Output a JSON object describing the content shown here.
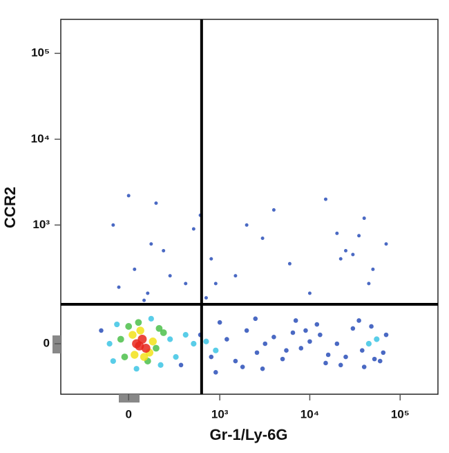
{
  "chart_data": {
    "type": "scatter",
    "x_label": "Gr-1/Ly-6G",
    "y_label": "CCR2",
    "scale": "biexponential",
    "xlim": [
      -540,
      262000
    ],
    "ylim": [
      -150,
      249000
    ],
    "xticks": [
      0,
      {
        "value": 1000,
        "label": "10³"
      },
      {
        "value": 10000,
        "label": "10⁴"
      },
      {
        "value": 100000,
        "label": "10⁵"
      }
    ],
    "yticks": [
      0,
      {
        "value": 1000,
        "label": "10³"
      },
      {
        "value": 10000,
        "label": "10⁴"
      },
      {
        "value": 100000,
        "label": "10⁵"
      }
    ],
    "gates": {
      "x": 620,
      "y": 105
    },
    "series": [
      {
        "color": "#2a4fb8",
        "x": [
          -80,
          0,
          30,
          100,
          200,
          400,
          600,
          800,
          1500,
          3000,
          6000,
          10000,
          20000,
          25000,
          30000,
          40000,
          50000,
          70000,
          -50,
          150,
          250,
          500,
          900,
          2000,
          4000,
          15000,
          22000,
          35000,
          45000,
          120,
          80,
          700
        ],
        "values": [
          1000,
          2200,
          300,
          150,
          500,
          200,
          1300,
          400,
          250,
          700,
          350,
          150,
          800,
          500,
          450,
          1200,
          300,
          600,
          180,
          1800,
          250,
          900,
          200,
          1000,
          1500,
          2000,
          400,
          750,
          200,
          600,
          120,
          130
        ]
      },
      {
        "color": "#2a4fb8",
        "x": [
          600,
          800,
          1200,
          1500,
          2000,
          2600,
          3200,
          4000,
          5000,
          6500,
          8000,
          10000,
          13000,
          16000,
          20000,
          25000,
          30000,
          38000,
          48000,
          60000,
          70000,
          1000,
          1800,
          3000,
          7000,
          12000,
          22000,
          40000,
          65000,
          900,
          2500,
          5500,
          9000,
          15000,
          35000,
          52000,
          -150,
          350
        ],
        "values": [
          20,
          -30,
          10,
          -40,
          30,
          -20,
          0,
          15,
          -35,
          25,
          -10,
          5,
          20,
          -25,
          0,
          -30,
          35,
          -15,
          40,
          -40,
          20,
          50,
          -55,
          -60,
          55,
          45,
          -50,
          -55,
          -20,
          -70,
          60,
          -15,
          30,
          -45,
          55,
          -35,
          30,
          -50
        ]
      },
      {
        "color": "#3cc4e4",
        "x": [
          -100,
          250,
          -60,
          300,
          400,
          180,
          -80,
          500,
          40,
          120,
          700,
          900,
          45000,
          55000
        ],
        "values": [
          0,
          10,
          45,
          -30,
          20,
          -50,
          -40,
          0,
          -60,
          60,
          5,
          -15,
          0,
          10
        ]
      },
      {
        "color": "#4cc04a",
        "x": [
          -40,
          150,
          0,
          200,
          100,
          -20,
          170,
          50
        ],
        "values": [
          10,
          -10,
          40,
          25,
          -40,
          -30,
          35,
          50
        ]
      },
      {
        "color": "#f2e21a",
        "x": [
          20,
          110,
          60,
          130,
          30,
          80
        ],
        "values": [
          20,
          -20,
          30,
          5,
          -25,
          -30
        ]
      },
      {
        "color": "#e8261c",
        "x": [
          40,
          70,
          90,
          55
        ],
        "values": [
          0,
          10,
          -10,
          -5
        ]
      }
    ]
  }
}
